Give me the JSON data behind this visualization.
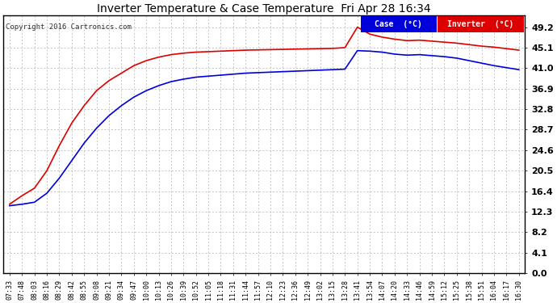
{
  "title": "Inverter Temperature & Case Temperature  Fri Apr 28 16:34",
  "copyright": "Copyright 2016 Cartronics.com",
  "background_color": "#ffffff",
  "plot_bg_color": "#ffffff",
  "grid_color": "#b0b0b0",
  "legend_case_label": "Case  (°C)",
  "legend_inverter_label": "Inverter  (°C)",
  "case_color": "#0000dd",
  "inverter_color": "#dd0000",
  "yticks": [
    0.0,
    4.1,
    8.2,
    12.3,
    16.4,
    20.5,
    24.6,
    28.7,
    32.8,
    36.9,
    41.0,
    45.1,
    49.2
  ],
  "ylim": [
    0.0,
    51.5
  ],
  "xlim": [
    -0.5,
    41.5
  ],
  "x_labels": [
    "07:33",
    "07:48",
    "08:03",
    "08:16",
    "08:29",
    "08:42",
    "08:55",
    "09:08",
    "09:21",
    "09:34",
    "09:47",
    "10:00",
    "10:13",
    "10:26",
    "10:39",
    "10:52",
    "11:05",
    "11:18",
    "11:31",
    "11:44",
    "11:57",
    "12:10",
    "12:23",
    "12:36",
    "12:49",
    "13:02",
    "13:15",
    "13:28",
    "13:41",
    "13:54",
    "14:07",
    "14:20",
    "14:33",
    "14:46",
    "14:59",
    "15:12",
    "15:25",
    "15:38",
    "15:51",
    "16:04",
    "16:17",
    "16:30"
  ],
  "case_data": [
    13.5,
    13.8,
    14.2,
    16.0,
    19.0,
    22.5,
    26.0,
    29.0,
    31.5,
    33.5,
    35.2,
    36.5,
    37.5,
    38.3,
    38.8,
    39.2,
    39.4,
    39.6,
    39.8,
    40.0,
    40.1,
    40.2,
    40.3,
    40.4,
    40.5,
    40.6,
    40.7,
    40.8,
    44.5,
    44.4,
    44.2,
    43.8,
    43.6,
    43.7,
    43.5,
    43.3,
    43.0,
    42.5,
    42.0,
    41.5,
    41.1,
    40.7
  ],
  "inverter_data": [
    13.8,
    15.5,
    17.0,
    20.5,
    25.5,
    30.0,
    33.5,
    36.5,
    38.5,
    40.0,
    41.5,
    42.5,
    43.2,
    43.7,
    44.0,
    44.2,
    44.3,
    44.4,
    44.5,
    44.6,
    44.65,
    44.7,
    44.75,
    44.8,
    44.85,
    44.9,
    44.95,
    45.1,
    49.2,
    47.8,
    47.2,
    46.8,
    46.5,
    46.6,
    46.4,
    46.2,
    46.0,
    45.7,
    45.4,
    45.2,
    44.9,
    44.6
  ]
}
